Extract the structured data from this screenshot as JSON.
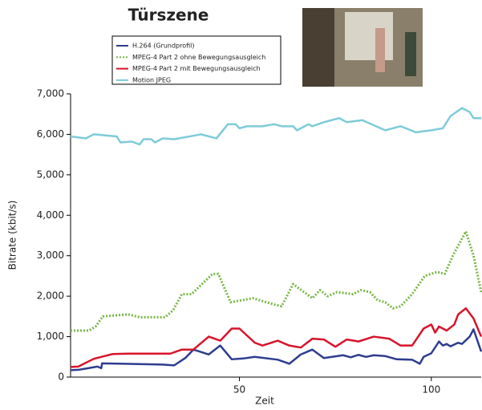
{
  "chart_data": {
    "type": "line",
    "title": "Türszene",
    "x_label": "Zeit",
    "y_label": "Bitrate (kbit/s)",
    "xlim": [
      6,
      113
    ],
    "xticks": [
      50,
      100
    ],
    "ylim": [
      0,
      7000
    ],
    "yticks": [
      0,
      {
        "value": 1000,
        "label": "1,000"
      },
      {
        "value": 2000,
        "label": "2,000"
      },
      {
        "value": 3000,
        "label": "3,000"
      },
      {
        "value": 4000,
        "label": "4,000"
      },
      {
        "value": 5000,
        "label": "5,000"
      },
      {
        "value": 6000,
        "label": "6,000"
      },
      {
        "value": 7000,
        "label": "7,000"
      }
    ],
    "legend": "top",
    "series": [
      {
        "name": "H.264 (Grundprofil)",
        "color": "#2e3d8f",
        "style": "solid",
        "x": [
          6,
          8,
          10,
          13,
          14,
          14.2,
          20,
          30,
          33,
          36,
          38,
          42,
          45,
          48,
          51,
          54,
          60,
          63,
          66,
          69,
          72,
          77,
          79,
          81,
          83,
          85,
          88,
          91,
          95,
          97,
          98,
          100,
          102,
          103,
          104,
          105,
          107,
          108,
          110,
          111,
          113
        ],
        "values": [
          170,
          180,
          210,
          260,
          220,
          340,
          330,
          310,
          290,
          480,
          680,
          560,
          780,
          440,
          460,
          500,
          430,
          330,
          560,
          680,
          470,
          540,
          490,
          550,
          500,
          540,
          520,
          440,
          430,
          330,
          500,
          590,
          880,
          780,
          820,
          760,
          850,
          820,
          1000,
          1180,
          630
        ]
      },
      {
        "name": "MPEG-4 Part 2 ohne Bewegungsausgleich",
        "color": "#7ab648",
        "style": "dotted",
        "x": [
          6,
          10.8,
          12.5,
          14.4,
          21,
          24,
          30.6,
          32.7,
          35,
          37.5,
          43,
          44.5,
          47.7,
          53.5,
          58.8,
          61,
          64,
          65.4,
          69,
          71,
          73,
          75.4,
          79.6,
          81.7,
          84,
          86,
          88,
          90,
          92,
          95,
          98.3,
          101.5,
          103.5,
          105.6,
          109,
          111,
          113
        ],
        "values": [
          1150,
          1150,
          1250,
          1500,
          1550,
          1480,
          1480,
          1650,
          2050,
          2050,
          2550,
          2550,
          1850,
          1950,
          1800,
          1750,
          2300,
          2200,
          1950,
          2150,
          2000,
          2100,
          2050,
          2150,
          2100,
          1900,
          1850,
          1700,
          1750,
          2050,
          2500,
          2600,
          2550,
          3000,
          3600,
          3000,
          2100
        ]
      },
      {
        "name": "MPEG-4 Part 2 mit Bewegungsausgleich",
        "color": "#d7142a",
        "style": "solid",
        "x": [
          6,
          8,
          12,
          14,
          17,
          21,
          32,
          35,
          38,
          42,
          45,
          48,
          50,
          54,
          56,
          60,
          63,
          66,
          69,
          72,
          75,
          78,
          81,
          85,
          89,
          92,
          95,
          98,
          100,
          101,
          102,
          104,
          106,
          107,
          109,
          111,
          113
        ],
        "values": [
          250,
          260,
          450,
          500,
          570,
          580,
          580,
          680,
          680,
          1000,
          900,
          1200,
          1200,
          850,
          780,
          900,
          780,
          730,
          950,
          930,
          750,
          930,
          880,
          1000,
          950,
          780,
          780,
          1200,
          1300,
          1100,
          1250,
          1150,
          1300,
          1550,
          1700,
          1450,
          1000
        ]
      },
      {
        "name": "Motion JPEG",
        "color": "#7ecbd8",
        "style": "solid",
        "x": [
          6,
          10,
          12,
          18,
          19,
          22,
          24,
          25,
          27,
          28,
          30,
          33,
          40,
          44,
          47,
          49,
          50,
          52,
          56,
          59,
          61,
          64,
          65,
          67,
          68,
          69,
          72,
          76,
          78,
          82,
          88,
          92,
          96,
          100,
          103,
          105,
          108,
          110,
          111,
          113
        ],
        "values": [
          5950,
          5900,
          6000,
          5950,
          5800,
          5820,
          5750,
          5880,
          5880,
          5800,
          5900,
          5880,
          6000,
          5900,
          6250,
          6250,
          6150,
          6200,
          6200,
          6250,
          6200,
          6200,
          6100,
          6200,
          6250,
          6200,
          6300,
          6400,
          6300,
          6350,
          6100,
          6200,
          6050,
          6100,
          6150,
          6450,
          6650,
          6550,
          6400,
          6400
        ]
      }
    ]
  }
}
